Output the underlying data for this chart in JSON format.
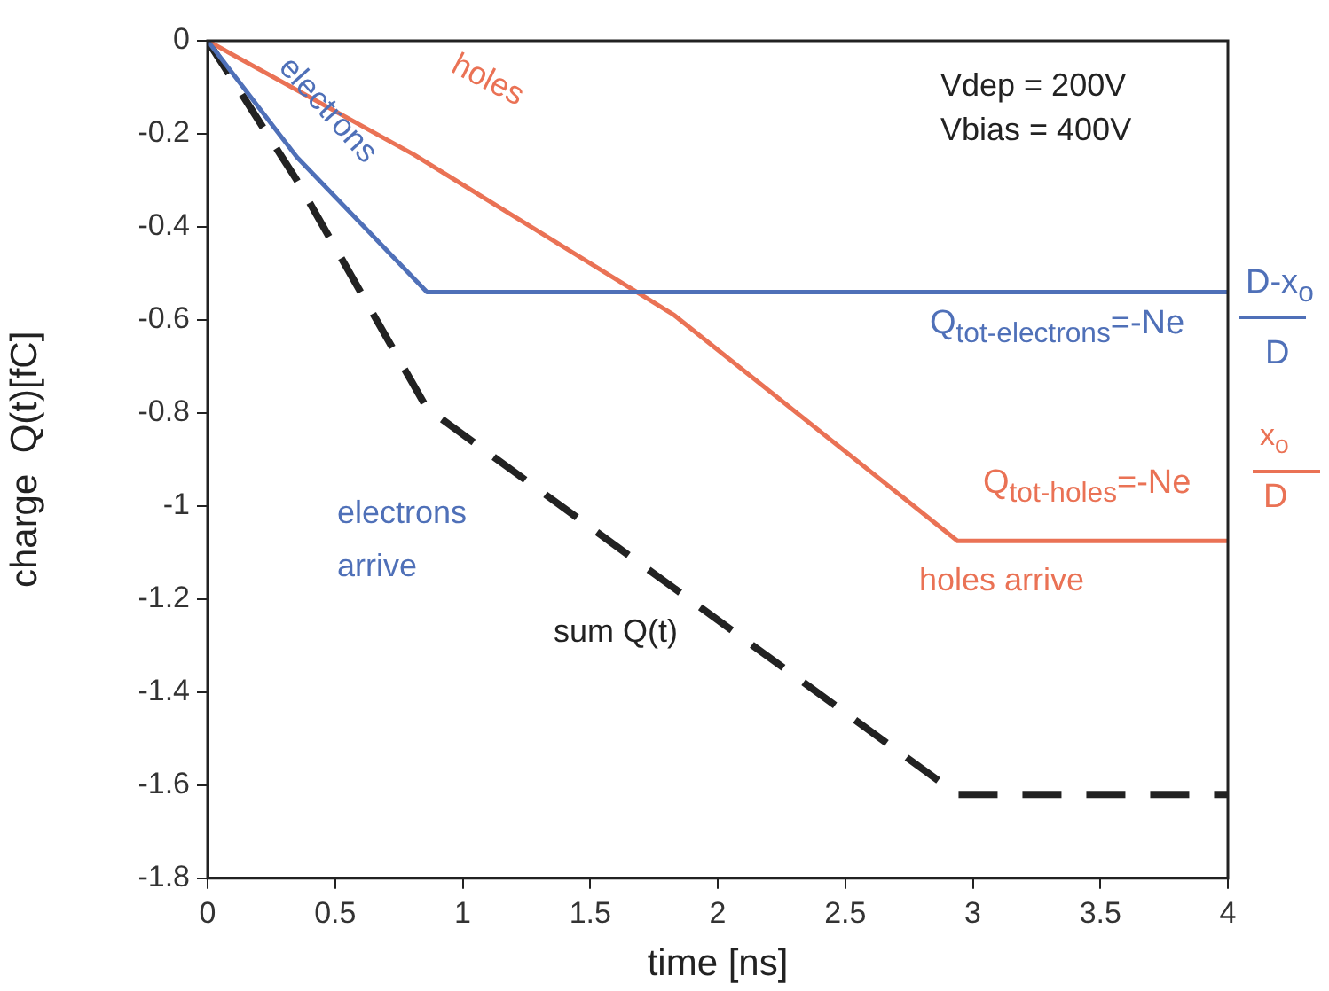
{
  "chart_data": {
    "type": "line",
    "xlabel": "time [ns]",
    "ylabel": "charge  Q(t)[fC]",
    "xlim": [
      0,
      4
    ],
    "xticks": [
      0,
      0.5,
      1,
      1.5,
      2,
      2.5,
      3,
      3.5,
      4
    ],
    "ylim": [
      -1.8,
      0
    ],
    "yticks": [
      -1.8,
      -1.6,
      -1.4,
      -1.2,
      -1,
      -0.8,
      -0.6,
      -0.4,
      -0.2,
      0
    ],
    "grid": false,
    "legend": false,
    "marker": "none",
    "series": [
      {
        "name": "electrons",
        "color": "#4f70b8",
        "x": [
          0,
          0.35,
          0.86,
          4
        ],
        "values": [
          0,
          -0.25,
          -0.54,
          -0.54
        ],
        "line_style": "solid"
      },
      {
        "name": "holes",
        "color": "#ea7255",
        "x": [
          0,
          0.81,
          1.83,
          2.94,
          4
        ],
        "values": [
          0,
          -0.245,
          -0.59,
          -1.075,
          -1.075
        ],
        "line_style": "solid"
      },
      {
        "name": "sum Q(t)",
        "color": "#222222",
        "x": [
          0,
          0.35,
          0.86,
          2.94,
          4
        ],
        "values": [
          0,
          -0.3,
          -0.79,
          -1.62,
          -1.62
        ],
        "line_style": "dashed"
      }
    ],
    "annotations": [
      "Vdep = 200V",
      "Vbias = 400V",
      "electrons arrive",
      "holes arrive",
      "Q$_{tot-electrons}$=-Ne",
      "D-x$_{o}$",
      "D",
      "Q$_{tot-holes}$=-Ne",
      "x$_{o}$",
      "D"
    ]
  }
}
